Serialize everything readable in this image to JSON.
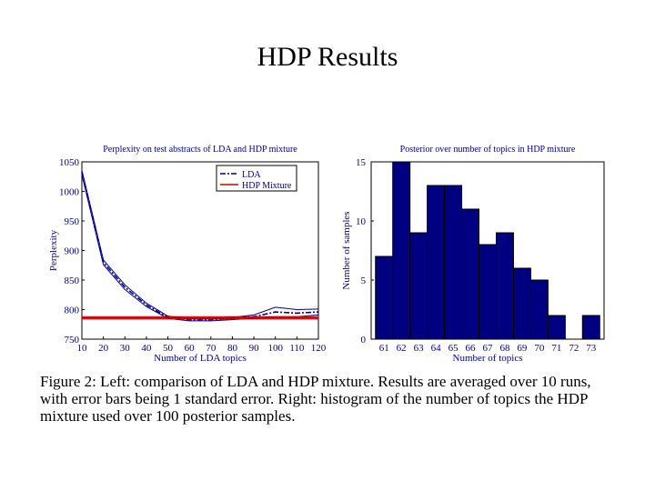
{
  "slide": {
    "title": "HDP Results",
    "caption": "Figure 2: Left: comparison of LDA and HDP mixture. Results are averaged over 10 runs, with error bars being 1 standard error. Right: histogram of the number of topics the HDP mixture used over 100 posterior samples."
  },
  "chart_data": [
    {
      "type": "line",
      "title": "Perplexity on test abstracts of LDA and HDP mixture",
      "xlabel": "Number of LDA topics",
      "ylabel": "Perplexity",
      "xlim": [
        10,
        120
      ],
      "ylim": [
        750,
        1050
      ],
      "xticks": [
        10,
        20,
        30,
        40,
        50,
        60,
        70,
        80,
        90,
        100,
        110,
        120
      ],
      "yticks": [
        750,
        800,
        850,
        900,
        950,
        1000,
        1050
      ],
      "legend_position": "top-right",
      "series": [
        {
          "name": "LDA",
          "color": "#00008b",
          "style": "dash-dot",
          "x": [
            10,
            20,
            30,
            40,
            50,
            60,
            70,
            80,
            90,
            100,
            110,
            120
          ],
          "y": [
            1032,
            880,
            838,
            808,
            787,
            783,
            783,
            785,
            788,
            796,
            794,
            796
          ],
          "error": [
            4,
            4,
            4,
            3,
            2,
            2,
            2,
            2,
            3,
            8,
            6,
            5
          ]
        },
        {
          "name": "HDP Mixture",
          "color": "#cc0000",
          "style": "solid",
          "x": [
            10,
            120
          ],
          "y": [
            786,
            786
          ],
          "error": [
            2,
            2
          ]
        }
      ]
    },
    {
      "type": "bar",
      "title": "Posterior over number of topics in HDP mixture",
      "xlabel": "Number of topics",
      "ylabel": "Number of samples",
      "ylim": [
        0,
        15
      ],
      "yticks": [
        0,
        5,
        10,
        15
      ],
      "color": "#000080",
      "categories": [
        "61",
        "62",
        "63",
        "64",
        "65",
        "66",
        "67",
        "68",
        "69",
        "70",
        "71",
        "72",
        "73"
      ],
      "values": [
        7,
        15,
        9,
        13,
        13,
        11,
        8,
        9,
        6,
        5,
        2,
        0,
        2
      ]
    }
  ]
}
